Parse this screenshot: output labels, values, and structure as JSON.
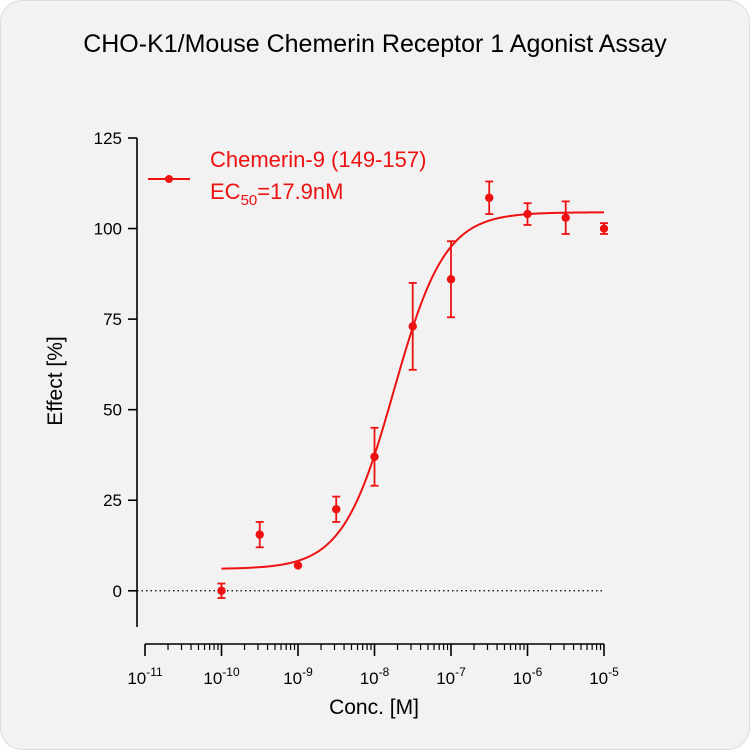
{
  "title": "CHO-K1/Mouse Chemerin Receptor 1 Agonist Assay",
  "chart_data": {
    "type": "scatter",
    "title": "CHO-K1/Mouse Chemerin Receptor 1 Agonist Assay",
    "xlabel": "Conc. [M]",
    "ylabel": "Effect  [%]",
    "x_scale": "log",
    "xlim": [
      1e-11,
      1e-05
    ],
    "ylim": [
      -10,
      125
    ],
    "x_tick_base": "10",
    "x_tick_exponents": [
      "-11",
      "-10",
      "-9",
      "-8",
      "-7",
      "-6",
      "-5"
    ],
    "y_ticks": [
      "0",
      "25",
      "50",
      "75",
      "100",
      "125"
    ],
    "grid": false,
    "zero_line": "dotted",
    "legend": {
      "placement": "top-left",
      "series_name": "Chemerin-9 (149-157)",
      "ec_prefix": "EC",
      "ec_sub": "50",
      "ec_value": "=17.9nM"
    },
    "color": "#ee1111",
    "series": [
      {
        "name": "Chemerin-9 (149-157)",
        "x": [
          1e-10,
          3.16e-10,
          1e-09,
          3.16e-09,
          1e-08,
          3.16e-08,
          1e-07,
          3.16e-07,
          1e-06,
          3.16e-06,
          1e-05
        ],
        "y": [
          0,
          15.5,
          7,
          22.5,
          37,
          73,
          86,
          108.5,
          104,
          103,
          100
        ],
        "err": [
          2,
          3.5,
          0,
          3.5,
          8,
          12,
          10.5,
          4.5,
          3,
          4.5,
          1.5
        ]
      }
    ],
    "fit": {
      "model": "four-parameter logistic",
      "bottom": 6,
      "top": 104.5,
      "ec50": 1.79e-08,
      "hill": 1.3,
      "x_range": [
        1e-10,
        1e-05
      ]
    }
  }
}
